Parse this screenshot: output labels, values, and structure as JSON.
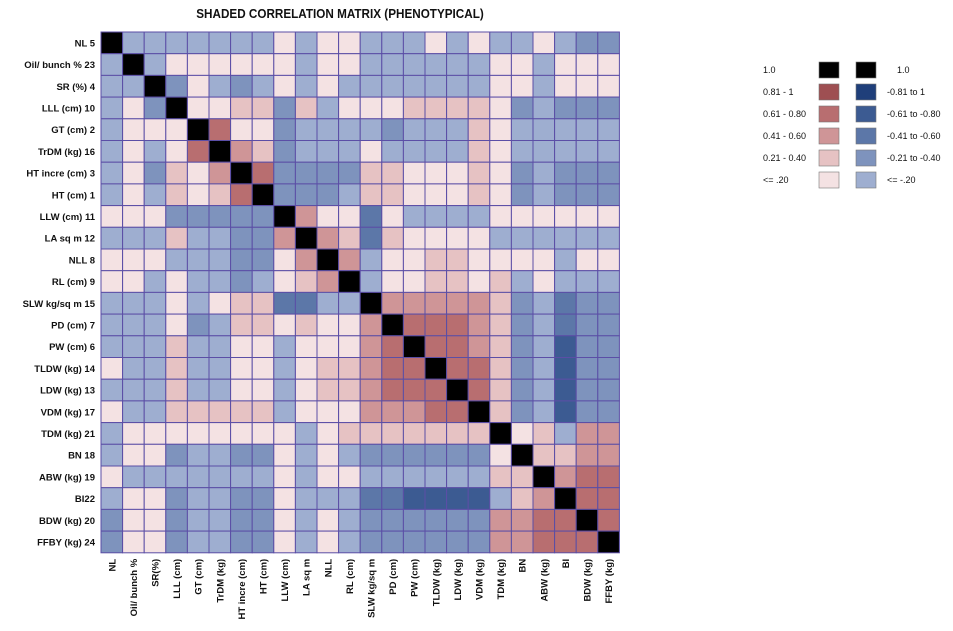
{
  "chart_data": {
    "type": "heatmap",
    "title": "SHADED CORRELATION MATRIX (PHENOTYPICAL)",
    "row_labels": [
      "NL  5",
      "Oil/ bunch  % 23",
      "SR (%)  4",
      "LLL (cm)  10",
      "GT (cm)  2",
      "TrDM (kg)  16",
      "HT incre (cm)  3",
      "HT (cm)  1",
      "LLW (cm)  11",
      "LA sq m 12",
      "NLL  8",
      "RL (cm)  9",
      "SLW kg/sq m 15",
      "PD (cm)  7",
      "PW (cm)  6",
      "TLDW (kg) 14",
      "LDW (kg) 13",
      "VDM (kg) 17",
      "TDM (kg) 21",
      "BN 18",
      "ABW (kg) 19",
      "BI22",
      "BDW (kg) 20",
      "FFBY (kg) 24"
    ],
    "column_labels": [
      "NL",
      "Oil/ bunch  %",
      "SR(%)",
      "LLL (cm)",
      "GT (cm)",
      "TrDM (kg)",
      "HT incre (cm)",
      "HT (cm)",
      "LLW (cm)",
      "LA sq m",
      "NLL",
      "RL (cm)",
      "SLW kg/sq m",
      "PD (cm)",
      "PW (cm)",
      "TLDW (kg)",
      "LDW (kg)",
      "VDM (kg)",
      "TDM (kg)",
      "BN",
      "ABW (kg)",
      "BI",
      "BDW (kg)",
      "FFBY (kg)"
    ],
    "values": [
      [
        1.0,
        -0.1,
        -0.1,
        -0.1,
        -0.1,
        -0.1,
        -0.1,
        -0.1,
        0.1,
        -0.1,
        0.1,
        0.1,
        -0.1,
        -0.1,
        -0.1,
        0.1,
        -0.1,
        0.1,
        -0.1,
        -0.1,
        0.1,
        -0.1,
        -0.3,
        -0.3
      ],
      [
        -0.1,
        1.0,
        -0.1,
        0.1,
        0.1,
        0.1,
        0.1,
        0.1,
        0.1,
        -0.1,
        0.1,
        0.1,
        -0.1,
        -0.1,
        -0.1,
        -0.1,
        -0.1,
        -0.1,
        0.1,
        0.1,
        -0.1,
        0.1,
        0.1,
        0.1
      ],
      [
        -0.1,
        -0.1,
        1.0,
        -0.3,
        0.1,
        -0.1,
        -0.3,
        -0.1,
        0.1,
        -0.1,
        0.1,
        -0.1,
        -0.1,
        -0.1,
        -0.1,
        -0.1,
        -0.1,
        -0.1,
        0.1,
        0.1,
        -0.1,
        0.1,
        0.1,
        0.1
      ],
      [
        -0.1,
        0.1,
        -0.3,
        1.0,
        0.1,
        0.1,
        0.3,
        0.3,
        -0.3,
        0.3,
        -0.1,
        0.1,
        0.1,
        0.1,
        0.3,
        0.3,
        0.3,
        0.3,
        0.1,
        -0.3,
        -0.1,
        -0.3,
        -0.3,
        -0.3
      ],
      [
        -0.1,
        0.1,
        0.1,
        0.1,
        1.0,
        0.7,
        0.1,
        0.1,
        -0.3,
        -0.1,
        -0.1,
        -0.1,
        -0.1,
        -0.3,
        -0.1,
        -0.1,
        -0.1,
        0.3,
        0.1,
        -0.1,
        -0.1,
        -0.1,
        -0.1,
        -0.1
      ],
      [
        -0.1,
        0.1,
        -0.1,
        0.1,
        0.7,
        1.0,
        0.5,
        0.3,
        -0.3,
        -0.1,
        -0.1,
        -0.1,
        0.1,
        -0.1,
        -0.1,
        -0.1,
        -0.1,
        0.3,
        0.1,
        -0.1,
        -0.1,
        -0.1,
        -0.1,
        -0.1
      ],
      [
        -0.1,
        0.1,
        -0.3,
        0.3,
        0.1,
        0.5,
        1.0,
        0.7,
        -0.3,
        -0.3,
        -0.3,
        -0.3,
        0.3,
        0.3,
        0.1,
        0.1,
        0.1,
        0.3,
        0.1,
        -0.3,
        -0.1,
        -0.3,
        -0.3,
        -0.3
      ],
      [
        -0.1,
        0.1,
        -0.1,
        0.3,
        0.1,
        0.3,
        0.7,
        1.0,
        -0.3,
        -0.3,
        -0.3,
        -0.1,
        0.3,
        0.3,
        0.1,
        0.1,
        0.1,
        0.3,
        0.1,
        -0.3,
        -0.1,
        -0.3,
        -0.3,
        -0.3
      ],
      [
        0.1,
        0.1,
        0.1,
        -0.3,
        -0.3,
        -0.3,
        -0.3,
        -0.3,
        1.0,
        0.5,
        0.1,
        0.1,
        -0.5,
        0.1,
        -0.1,
        -0.1,
        -0.1,
        -0.1,
        0.1,
        0.1,
        0.1,
        0.1,
        0.1,
        0.1
      ],
      [
        -0.1,
        -0.1,
        -0.1,
        0.3,
        -0.1,
        -0.1,
        -0.3,
        -0.3,
        0.5,
        1.0,
        0.5,
        0.3,
        -0.5,
        0.3,
        0.1,
        0.1,
        0.1,
        0.1,
        -0.1,
        -0.1,
        -0.1,
        -0.1,
        -0.1,
        -0.1
      ],
      [
        0.1,
        0.1,
        0.1,
        -0.1,
        -0.1,
        -0.1,
        -0.3,
        -0.3,
        0.1,
        0.5,
        1.0,
        0.5,
        -0.1,
        0.1,
        0.1,
        0.3,
        0.3,
        0.1,
        0.1,
        0.1,
        0.1,
        -0.1,
        0.1,
        0.1
      ],
      [
        0.1,
        0.1,
        -0.1,
        0.1,
        -0.1,
        -0.1,
        -0.3,
        -0.1,
        0.1,
        0.3,
        0.5,
        1.0,
        -0.1,
        0.1,
        0.1,
        0.3,
        0.3,
        0.1,
        0.3,
        -0.1,
        0.1,
        -0.1,
        -0.1,
        -0.1
      ],
      [
        -0.1,
        -0.1,
        -0.1,
        0.1,
        -0.1,
        0.1,
        0.3,
        0.3,
        -0.5,
        -0.5,
        -0.1,
        -0.1,
        1.0,
        0.5,
        0.5,
        0.5,
        0.5,
        0.5,
        0.3,
        -0.3,
        -0.1,
        -0.5,
        -0.3,
        -0.3
      ],
      [
        -0.1,
        -0.1,
        -0.1,
        0.1,
        -0.3,
        -0.1,
        0.3,
        0.3,
        0.1,
        0.3,
        0.1,
        0.1,
        0.5,
        1.0,
        0.7,
        0.7,
        0.7,
        0.5,
        0.3,
        -0.3,
        -0.1,
        -0.5,
        -0.3,
        -0.3
      ],
      [
        -0.1,
        -0.1,
        -0.1,
        0.3,
        -0.1,
        -0.1,
        0.1,
        0.1,
        -0.1,
        0.1,
        0.1,
        0.1,
        0.5,
        0.7,
        1.0,
        0.7,
        0.7,
        0.5,
        0.3,
        -0.3,
        -0.1,
        -0.7,
        -0.3,
        -0.3
      ],
      [
        0.1,
        -0.1,
        -0.1,
        0.3,
        -0.1,
        -0.1,
        0.1,
        0.1,
        -0.1,
        0.1,
        0.3,
        0.3,
        0.5,
        0.7,
        0.7,
        1.0,
        0.7,
        0.7,
        0.3,
        -0.3,
        -0.1,
        -0.7,
        -0.3,
        -0.3
      ],
      [
        -0.1,
        -0.1,
        -0.1,
        0.3,
        -0.1,
        -0.1,
        0.1,
        0.1,
        -0.1,
        0.1,
        0.3,
        0.3,
        0.5,
        0.7,
        0.7,
        0.7,
        1.0,
        0.7,
        0.3,
        -0.3,
        -0.1,
        -0.7,
        -0.3,
        -0.3
      ],
      [
        0.1,
        -0.1,
        -0.1,
        0.3,
        0.3,
        0.3,
        0.3,
        0.3,
        -0.1,
        0.1,
        0.1,
        0.1,
        0.5,
        0.5,
        0.5,
        0.7,
        0.7,
        1.0,
        0.3,
        -0.3,
        -0.1,
        -0.7,
        -0.3,
        -0.3
      ],
      [
        -0.1,
        0.1,
        0.1,
        0.1,
        0.1,
        0.1,
        0.1,
        0.1,
        0.1,
        -0.1,
        0.1,
        0.3,
        0.3,
        0.3,
        0.3,
        0.3,
        0.3,
        0.3,
        1.0,
        0.1,
        0.3,
        -0.1,
        0.5,
        0.5
      ],
      [
        -0.1,
        0.1,
        0.1,
        -0.3,
        -0.1,
        -0.1,
        -0.3,
        -0.3,
        0.1,
        -0.1,
        0.1,
        -0.1,
        -0.3,
        -0.3,
        -0.3,
        -0.3,
        -0.3,
        -0.3,
        0.1,
        1.0,
        0.3,
        0.3,
        0.5,
        0.5
      ],
      [
        0.1,
        -0.1,
        -0.1,
        -0.1,
        -0.1,
        -0.1,
        -0.1,
        -0.1,
        0.1,
        -0.1,
        0.1,
        0.1,
        -0.1,
        -0.1,
        -0.1,
        -0.1,
        -0.1,
        -0.1,
        0.3,
        0.3,
        1.0,
        0.5,
        0.7,
        0.7
      ],
      [
        -0.1,
        0.1,
        0.1,
        -0.3,
        -0.1,
        -0.1,
        -0.3,
        -0.3,
        0.1,
        -0.1,
        -0.1,
        -0.1,
        -0.5,
        -0.5,
        -0.7,
        -0.7,
        -0.7,
        -0.7,
        -0.1,
        0.3,
        0.5,
        1.0,
        0.7,
        0.7
      ],
      [
        -0.3,
        0.1,
        0.1,
        -0.3,
        -0.1,
        -0.1,
        -0.3,
        -0.3,
        0.1,
        -0.1,
        0.1,
        -0.1,
        -0.3,
        -0.3,
        -0.3,
        -0.3,
        -0.3,
        -0.3,
        0.5,
        0.5,
        0.7,
        0.7,
        1.0,
        0.7
      ],
      [
        -0.3,
        0.1,
        0.1,
        -0.3,
        -0.1,
        -0.1,
        -0.3,
        -0.3,
        0.1,
        -0.1,
        0.1,
        -0.1,
        -0.3,
        -0.3,
        -0.3,
        -0.3,
        -0.3,
        -0.3,
        0.5,
        0.5,
        0.7,
        0.7,
        0.7,
        1.0
      ]
    ],
    "legend_positive": [
      {
        "label": "1.0",
        "color": "#000000"
      },
      {
        "label": "0.81 - 1",
        "color": "#9e4f52"
      },
      {
        "label": "0.61 - 0.80",
        "color": "#b86e70"
      },
      {
        "label": "0.41 - 0.60",
        "color": "#cf9597"
      },
      {
        "label": "0.21 - 0.40",
        "color": "#e6c2c3"
      },
      {
        "label": "<= .20",
        "color": "#f4e2e3"
      }
    ],
    "legend_negative": [
      {
        "label": "1.0",
        "color": "#000000"
      },
      {
        "label": "-0.81 to 1",
        "color": "#1f3f7a"
      },
      {
        "label": "-0.61 to -0.80",
        "color": "#3c5b92"
      },
      {
        "label": "-0.41 to -0.60",
        "color": "#5c77a8"
      },
      {
        "label": "-0.21 to -0.40",
        "color": "#7e93bd"
      },
      {
        "label": "<= -.20",
        "color": "#9eaed0"
      }
    ],
    "grid_color": "#5b4ea6"
  }
}
